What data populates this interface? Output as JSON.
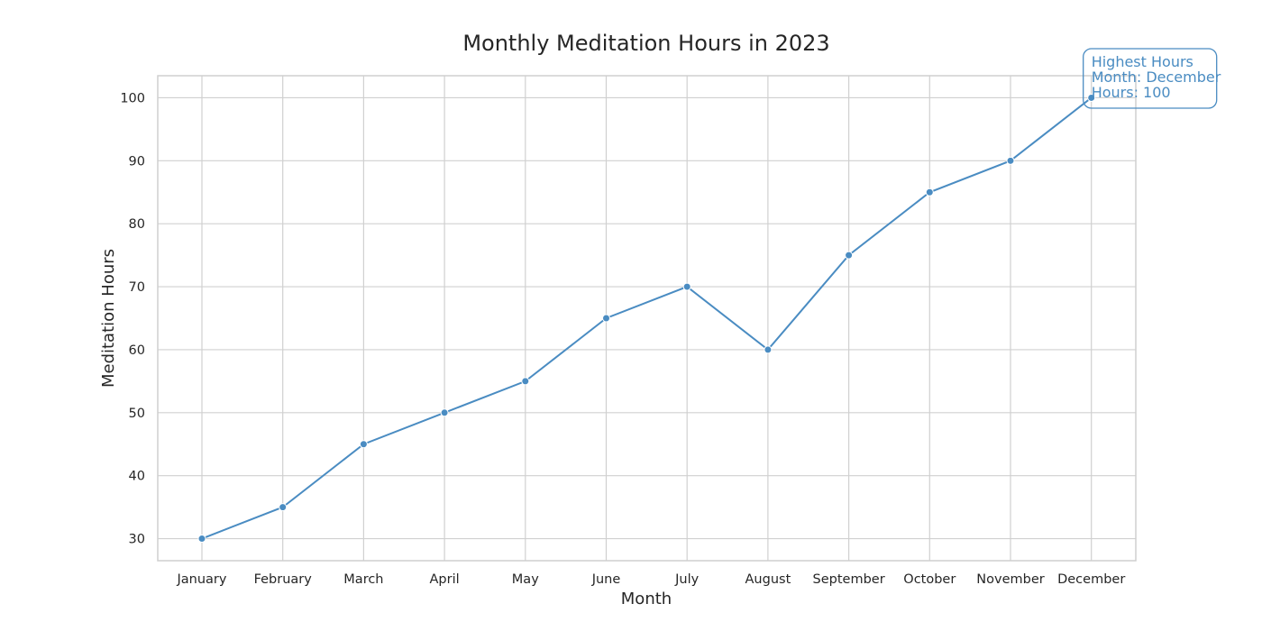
{
  "colors": {
    "line": "#4a8cc2",
    "grid": "#d0d0d0",
    "frame": "#cfcfcf",
    "text": "#262626"
  },
  "chart_data": {
    "type": "line",
    "title": "Monthly Meditation Hours in 2023",
    "xlabel": "Month",
    "ylabel": "Meditation Hours",
    "categories": [
      "January",
      "February",
      "March",
      "April",
      "May",
      "June",
      "July",
      "August",
      "September",
      "October",
      "November",
      "December"
    ],
    "series": [
      {
        "values": [
          30,
          35,
          45,
          50,
          55,
          65,
          70,
          60,
          75,
          85,
          90,
          100
        ]
      }
    ],
    "yticks": [
      30,
      40,
      50,
      60,
      70,
      80,
      90,
      100
    ],
    "ylim": [
      26.5,
      103.5
    ],
    "grid": true,
    "markers": "circle",
    "annotation": {
      "category": "December",
      "value": 100,
      "lines": [
        "Highest Hours",
        "Month: December",
        "Hours: 100"
      ]
    }
  }
}
